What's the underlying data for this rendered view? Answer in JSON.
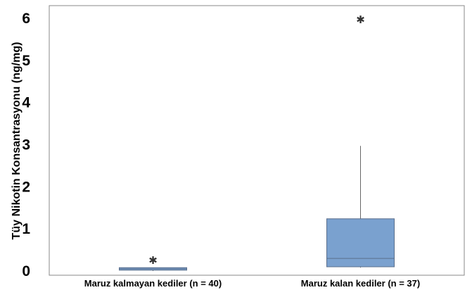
{
  "chart_data": {
    "type": "boxplot",
    "title": "",
    "xlabel": "",
    "ylabel": "Tüy Nikotin Konsantrasyonu (ng/mg)",
    "ylim": [
      -0.1,
      6.3
    ],
    "yticks": [
      0,
      1,
      2,
      3,
      4,
      5,
      6
    ],
    "grid": false,
    "box_color": "#7aa1cf",
    "box_edge_color": "#5b6f8c",
    "line_color": "#666666",
    "categories": [
      "Maruz kalmayan kediler (n = 40)",
      "Maruz kalan kediler (n = 37)"
    ],
    "boxes": [
      {
        "category": "Maruz kalmayan kediler (n = 40)",
        "whisker_low": 0.0,
        "q1": 0.02,
        "median": 0.05,
        "q3": 0.08,
        "whisker_high": 0.08,
        "outliers": [
          0.27
        ]
      },
      {
        "category": "Maruz kalan kediler (n = 37)",
        "whisker_low": 0.08,
        "q1": 0.1,
        "median": 0.3,
        "q3": 1.24,
        "whisker_high": 2.97,
        "outliers": [
          5.98
        ]
      }
    ]
  }
}
